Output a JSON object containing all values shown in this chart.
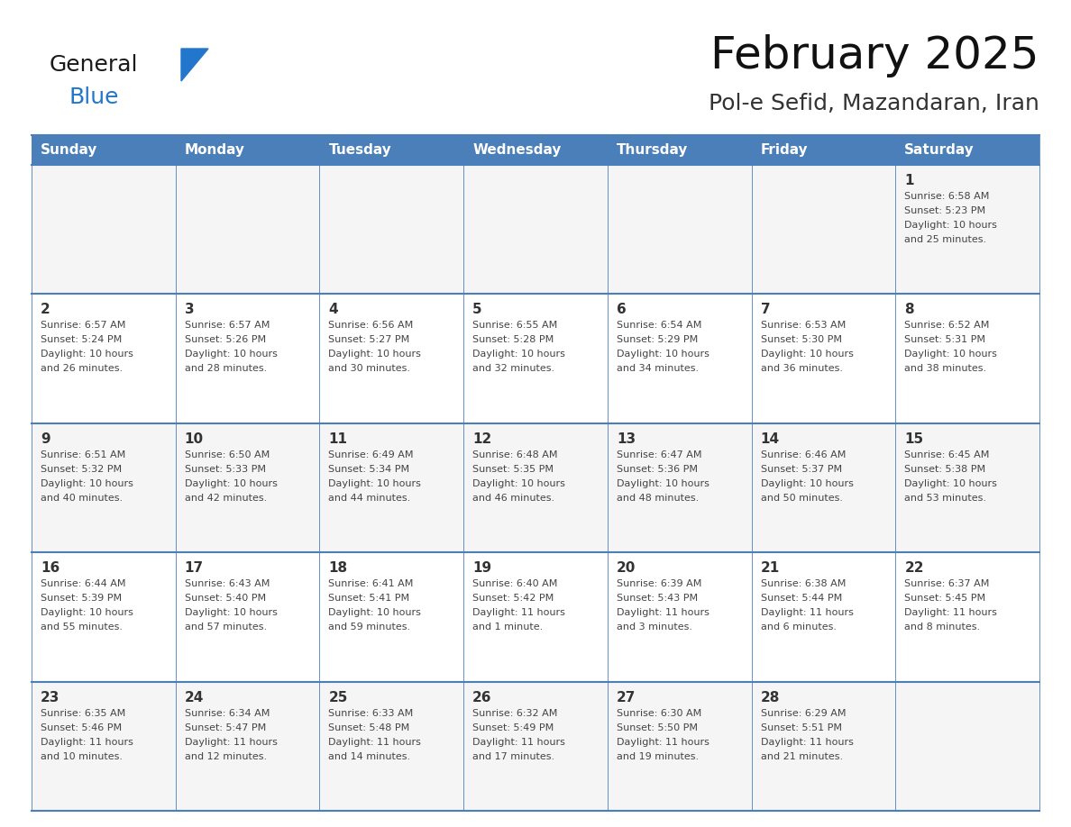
{
  "title": "February 2025",
  "subtitle": "Pol-e Sefid, Mazandaran, Iran",
  "header_bg": "#4a7fba",
  "header_text_color": "#ffffff",
  "cell_bg_odd": "#f5f5f5",
  "cell_bg_even": "#ffffff",
  "day_num_color": "#333333",
  "cell_text_color": "#444444",
  "border_color": "#4a7fba",
  "days_of_week": [
    "Sunday",
    "Monday",
    "Tuesday",
    "Wednesday",
    "Thursday",
    "Friday",
    "Saturday"
  ],
  "weeks": [
    [
      {
        "day": "",
        "sunrise": "",
        "sunset": "",
        "daylight1": "",
        "daylight2": ""
      },
      {
        "day": "",
        "sunrise": "",
        "sunset": "",
        "daylight1": "",
        "daylight2": ""
      },
      {
        "day": "",
        "sunrise": "",
        "sunset": "",
        "daylight1": "",
        "daylight2": ""
      },
      {
        "day": "",
        "sunrise": "",
        "sunset": "",
        "daylight1": "",
        "daylight2": ""
      },
      {
        "day": "",
        "sunrise": "",
        "sunset": "",
        "daylight1": "",
        "daylight2": ""
      },
      {
        "day": "",
        "sunrise": "",
        "sunset": "",
        "daylight1": "",
        "daylight2": ""
      },
      {
        "day": "1",
        "sunrise": "Sunrise: 6:58 AM",
        "sunset": "Sunset: 5:23 PM",
        "daylight1": "Daylight: 10 hours",
        "daylight2": "and 25 minutes."
      }
    ],
    [
      {
        "day": "2",
        "sunrise": "Sunrise: 6:57 AM",
        "sunset": "Sunset: 5:24 PM",
        "daylight1": "Daylight: 10 hours",
        "daylight2": "and 26 minutes."
      },
      {
        "day": "3",
        "sunrise": "Sunrise: 6:57 AM",
        "sunset": "Sunset: 5:26 PM",
        "daylight1": "Daylight: 10 hours",
        "daylight2": "and 28 minutes."
      },
      {
        "day": "4",
        "sunrise": "Sunrise: 6:56 AM",
        "sunset": "Sunset: 5:27 PM",
        "daylight1": "Daylight: 10 hours",
        "daylight2": "and 30 minutes."
      },
      {
        "day": "5",
        "sunrise": "Sunrise: 6:55 AM",
        "sunset": "Sunset: 5:28 PM",
        "daylight1": "Daylight: 10 hours",
        "daylight2": "and 32 minutes."
      },
      {
        "day": "6",
        "sunrise": "Sunrise: 6:54 AM",
        "sunset": "Sunset: 5:29 PM",
        "daylight1": "Daylight: 10 hours",
        "daylight2": "and 34 minutes."
      },
      {
        "day": "7",
        "sunrise": "Sunrise: 6:53 AM",
        "sunset": "Sunset: 5:30 PM",
        "daylight1": "Daylight: 10 hours",
        "daylight2": "and 36 minutes."
      },
      {
        "day": "8",
        "sunrise": "Sunrise: 6:52 AM",
        "sunset": "Sunset: 5:31 PM",
        "daylight1": "Daylight: 10 hours",
        "daylight2": "and 38 minutes."
      }
    ],
    [
      {
        "day": "9",
        "sunrise": "Sunrise: 6:51 AM",
        "sunset": "Sunset: 5:32 PM",
        "daylight1": "Daylight: 10 hours",
        "daylight2": "and 40 minutes."
      },
      {
        "day": "10",
        "sunrise": "Sunrise: 6:50 AM",
        "sunset": "Sunset: 5:33 PM",
        "daylight1": "Daylight: 10 hours",
        "daylight2": "and 42 minutes."
      },
      {
        "day": "11",
        "sunrise": "Sunrise: 6:49 AM",
        "sunset": "Sunset: 5:34 PM",
        "daylight1": "Daylight: 10 hours",
        "daylight2": "and 44 minutes."
      },
      {
        "day": "12",
        "sunrise": "Sunrise: 6:48 AM",
        "sunset": "Sunset: 5:35 PM",
        "daylight1": "Daylight: 10 hours",
        "daylight2": "and 46 minutes."
      },
      {
        "day": "13",
        "sunrise": "Sunrise: 6:47 AM",
        "sunset": "Sunset: 5:36 PM",
        "daylight1": "Daylight: 10 hours",
        "daylight2": "and 48 minutes."
      },
      {
        "day": "14",
        "sunrise": "Sunrise: 6:46 AM",
        "sunset": "Sunset: 5:37 PM",
        "daylight1": "Daylight: 10 hours",
        "daylight2": "and 50 minutes."
      },
      {
        "day": "15",
        "sunrise": "Sunrise: 6:45 AM",
        "sunset": "Sunset: 5:38 PM",
        "daylight1": "Daylight: 10 hours",
        "daylight2": "and 53 minutes."
      }
    ],
    [
      {
        "day": "16",
        "sunrise": "Sunrise: 6:44 AM",
        "sunset": "Sunset: 5:39 PM",
        "daylight1": "Daylight: 10 hours",
        "daylight2": "and 55 minutes."
      },
      {
        "day": "17",
        "sunrise": "Sunrise: 6:43 AM",
        "sunset": "Sunset: 5:40 PM",
        "daylight1": "Daylight: 10 hours",
        "daylight2": "and 57 minutes."
      },
      {
        "day": "18",
        "sunrise": "Sunrise: 6:41 AM",
        "sunset": "Sunset: 5:41 PM",
        "daylight1": "Daylight: 10 hours",
        "daylight2": "and 59 minutes."
      },
      {
        "day": "19",
        "sunrise": "Sunrise: 6:40 AM",
        "sunset": "Sunset: 5:42 PM",
        "daylight1": "Daylight: 11 hours",
        "daylight2": "and 1 minute."
      },
      {
        "day": "20",
        "sunrise": "Sunrise: 6:39 AM",
        "sunset": "Sunset: 5:43 PM",
        "daylight1": "Daylight: 11 hours",
        "daylight2": "and 3 minutes."
      },
      {
        "day": "21",
        "sunrise": "Sunrise: 6:38 AM",
        "sunset": "Sunset: 5:44 PM",
        "daylight1": "Daylight: 11 hours",
        "daylight2": "and 6 minutes."
      },
      {
        "day": "22",
        "sunrise": "Sunrise: 6:37 AM",
        "sunset": "Sunset: 5:45 PM",
        "daylight1": "Daylight: 11 hours",
        "daylight2": "and 8 minutes."
      }
    ],
    [
      {
        "day": "23",
        "sunrise": "Sunrise: 6:35 AM",
        "sunset": "Sunset: 5:46 PM",
        "daylight1": "Daylight: 11 hours",
        "daylight2": "and 10 minutes."
      },
      {
        "day": "24",
        "sunrise": "Sunrise: 6:34 AM",
        "sunset": "Sunset: 5:47 PM",
        "daylight1": "Daylight: 11 hours",
        "daylight2": "and 12 minutes."
      },
      {
        "day": "25",
        "sunrise": "Sunrise: 6:33 AM",
        "sunset": "Sunset: 5:48 PM",
        "daylight1": "Daylight: 11 hours",
        "daylight2": "and 14 minutes."
      },
      {
        "day": "26",
        "sunrise": "Sunrise: 6:32 AM",
        "sunset": "Sunset: 5:49 PM",
        "daylight1": "Daylight: 11 hours",
        "daylight2": "and 17 minutes."
      },
      {
        "day": "27",
        "sunrise": "Sunrise: 6:30 AM",
        "sunset": "Sunset: 5:50 PM",
        "daylight1": "Daylight: 11 hours",
        "daylight2": "and 19 minutes."
      },
      {
        "day": "28",
        "sunrise": "Sunrise: 6:29 AM",
        "sunset": "Sunset: 5:51 PM",
        "daylight1": "Daylight: 11 hours",
        "daylight2": "and 21 minutes."
      },
      {
        "day": "",
        "sunrise": "",
        "sunset": "",
        "daylight1": "",
        "daylight2": ""
      }
    ]
  ],
  "logo_general_color": "#1a1a1a",
  "logo_blue_color": "#2277cc",
  "logo_triangle_color": "#2277cc",
  "title_fontsize": 36,
  "subtitle_fontsize": 18,
  "header_fontsize": 11,
  "day_num_fontsize": 11,
  "cell_text_fontsize": 8
}
